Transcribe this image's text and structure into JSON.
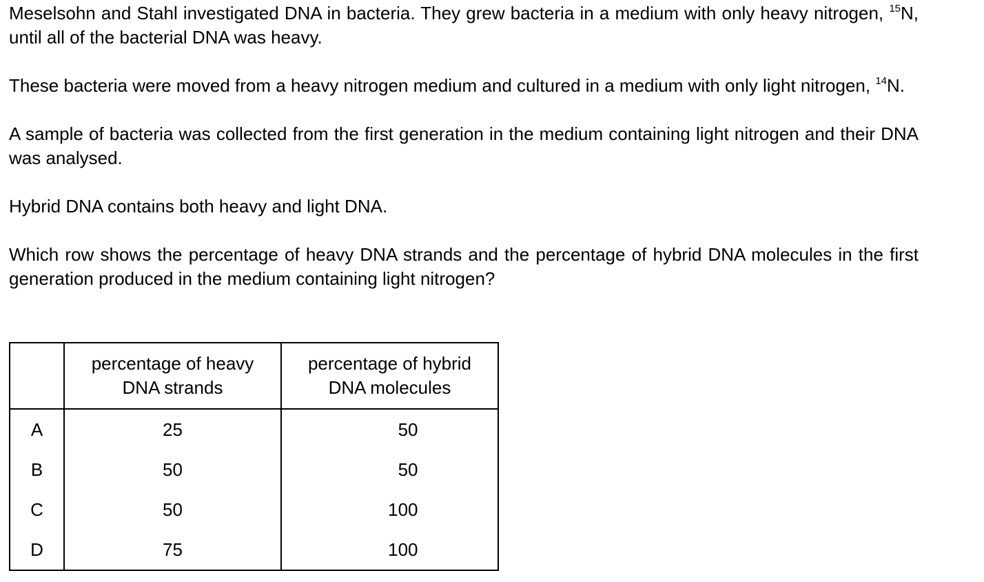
{
  "question": {
    "p1_before": "Meselsohn and Stahl investigated DNA in bacteria. They grew bacteria in a medium with only heavy nitrogen, ",
    "p1_sup": "15",
    "p1_after": "N, until all of the bacterial DNA was heavy.",
    "p2_before": "These bacteria were moved from a heavy nitrogen medium and cultured in a medium with only light nitrogen, ",
    "p2_sup": "14",
    "p2_after": "N.",
    "p3": "A sample of bacteria was collected from the first generation in the medium containing light nitrogen and their DNA was analysed.",
    "p4": "Hybrid DNA contains both heavy and light DNA.",
    "p5": "Which row shows the percentage of heavy DNA strands and the percentage of hybrid DNA molecules in the first generation produced in the medium containing light nitrogen?"
  },
  "table": {
    "headers": {
      "heavy_line1": "percentage of heavy",
      "heavy_line2": "DNA strands",
      "hybrid_line1": "percentage of hybrid",
      "hybrid_line2": "DNA molecules"
    },
    "rows": [
      {
        "letter": "A",
        "heavy": "25",
        "hybrid": "50"
      },
      {
        "letter": "B",
        "heavy": "50",
        "hybrid": "50"
      },
      {
        "letter": "C",
        "heavy": "50",
        "hybrid": "100"
      },
      {
        "letter": "D",
        "heavy": "75",
        "hybrid": "100"
      }
    ]
  }
}
